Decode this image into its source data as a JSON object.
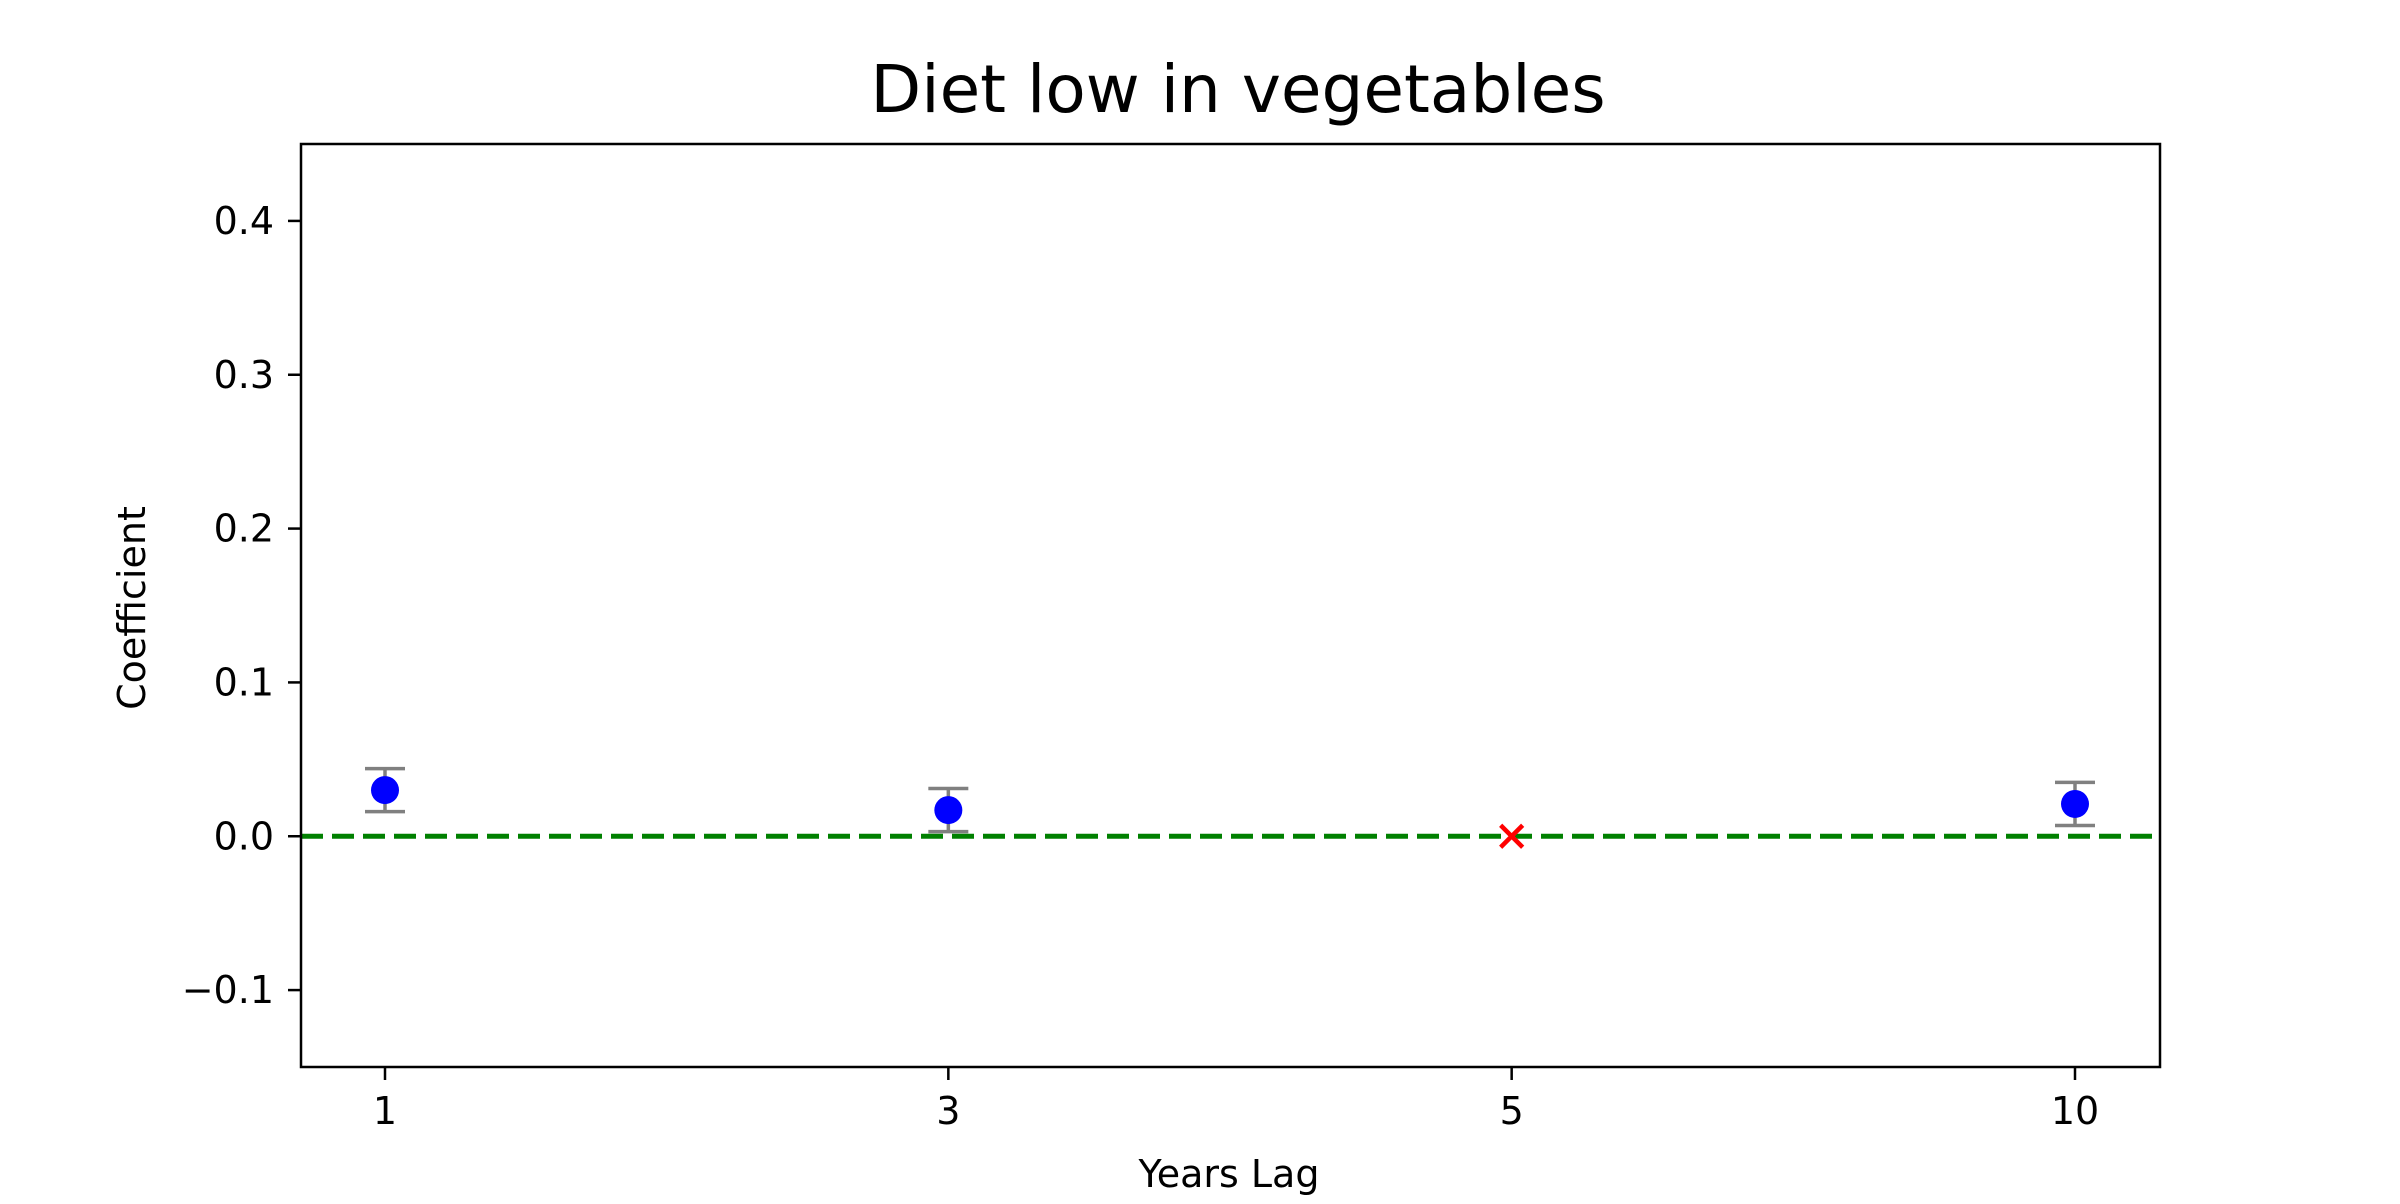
{
  "chart_data": {
    "type": "scatter",
    "title": "Diet low in vegetables",
    "xlabel": "Years Lag",
    "ylabel": "Coefficient",
    "categories": [
      "1",
      "3",
      "5",
      "10"
    ],
    "ylim": [
      -0.15,
      0.45
    ],
    "yticks": [
      -0.1,
      0.0,
      0.1,
      0.2,
      0.3,
      0.4
    ],
    "ytick_labels": [
      "−0.1",
      "0.0",
      "0.1",
      "0.2",
      "0.3",
      "0.4"
    ],
    "grid": false,
    "legend": "none",
    "points": [
      {
        "x": "1",
        "y": 0.03,
        "err_low": 0.016,
        "err_high": 0.044,
        "significant": true
      },
      {
        "x": "3",
        "y": 0.017,
        "err_low": 0.003,
        "err_high": 0.031,
        "significant": true
      },
      {
        "x": "5",
        "y": 0.0,
        "significant": false
      },
      {
        "x": "10",
        "y": 0.021,
        "err_low": 0.007,
        "err_high": 0.035,
        "significant": true
      }
    ],
    "reference_line": {
      "y": 0.0,
      "style": "dashed"
    },
    "colors": {
      "point": "#0000ff",
      "missing_marker": "#ff0000",
      "errorbar": "#808080",
      "reference_line": "#008000"
    }
  }
}
